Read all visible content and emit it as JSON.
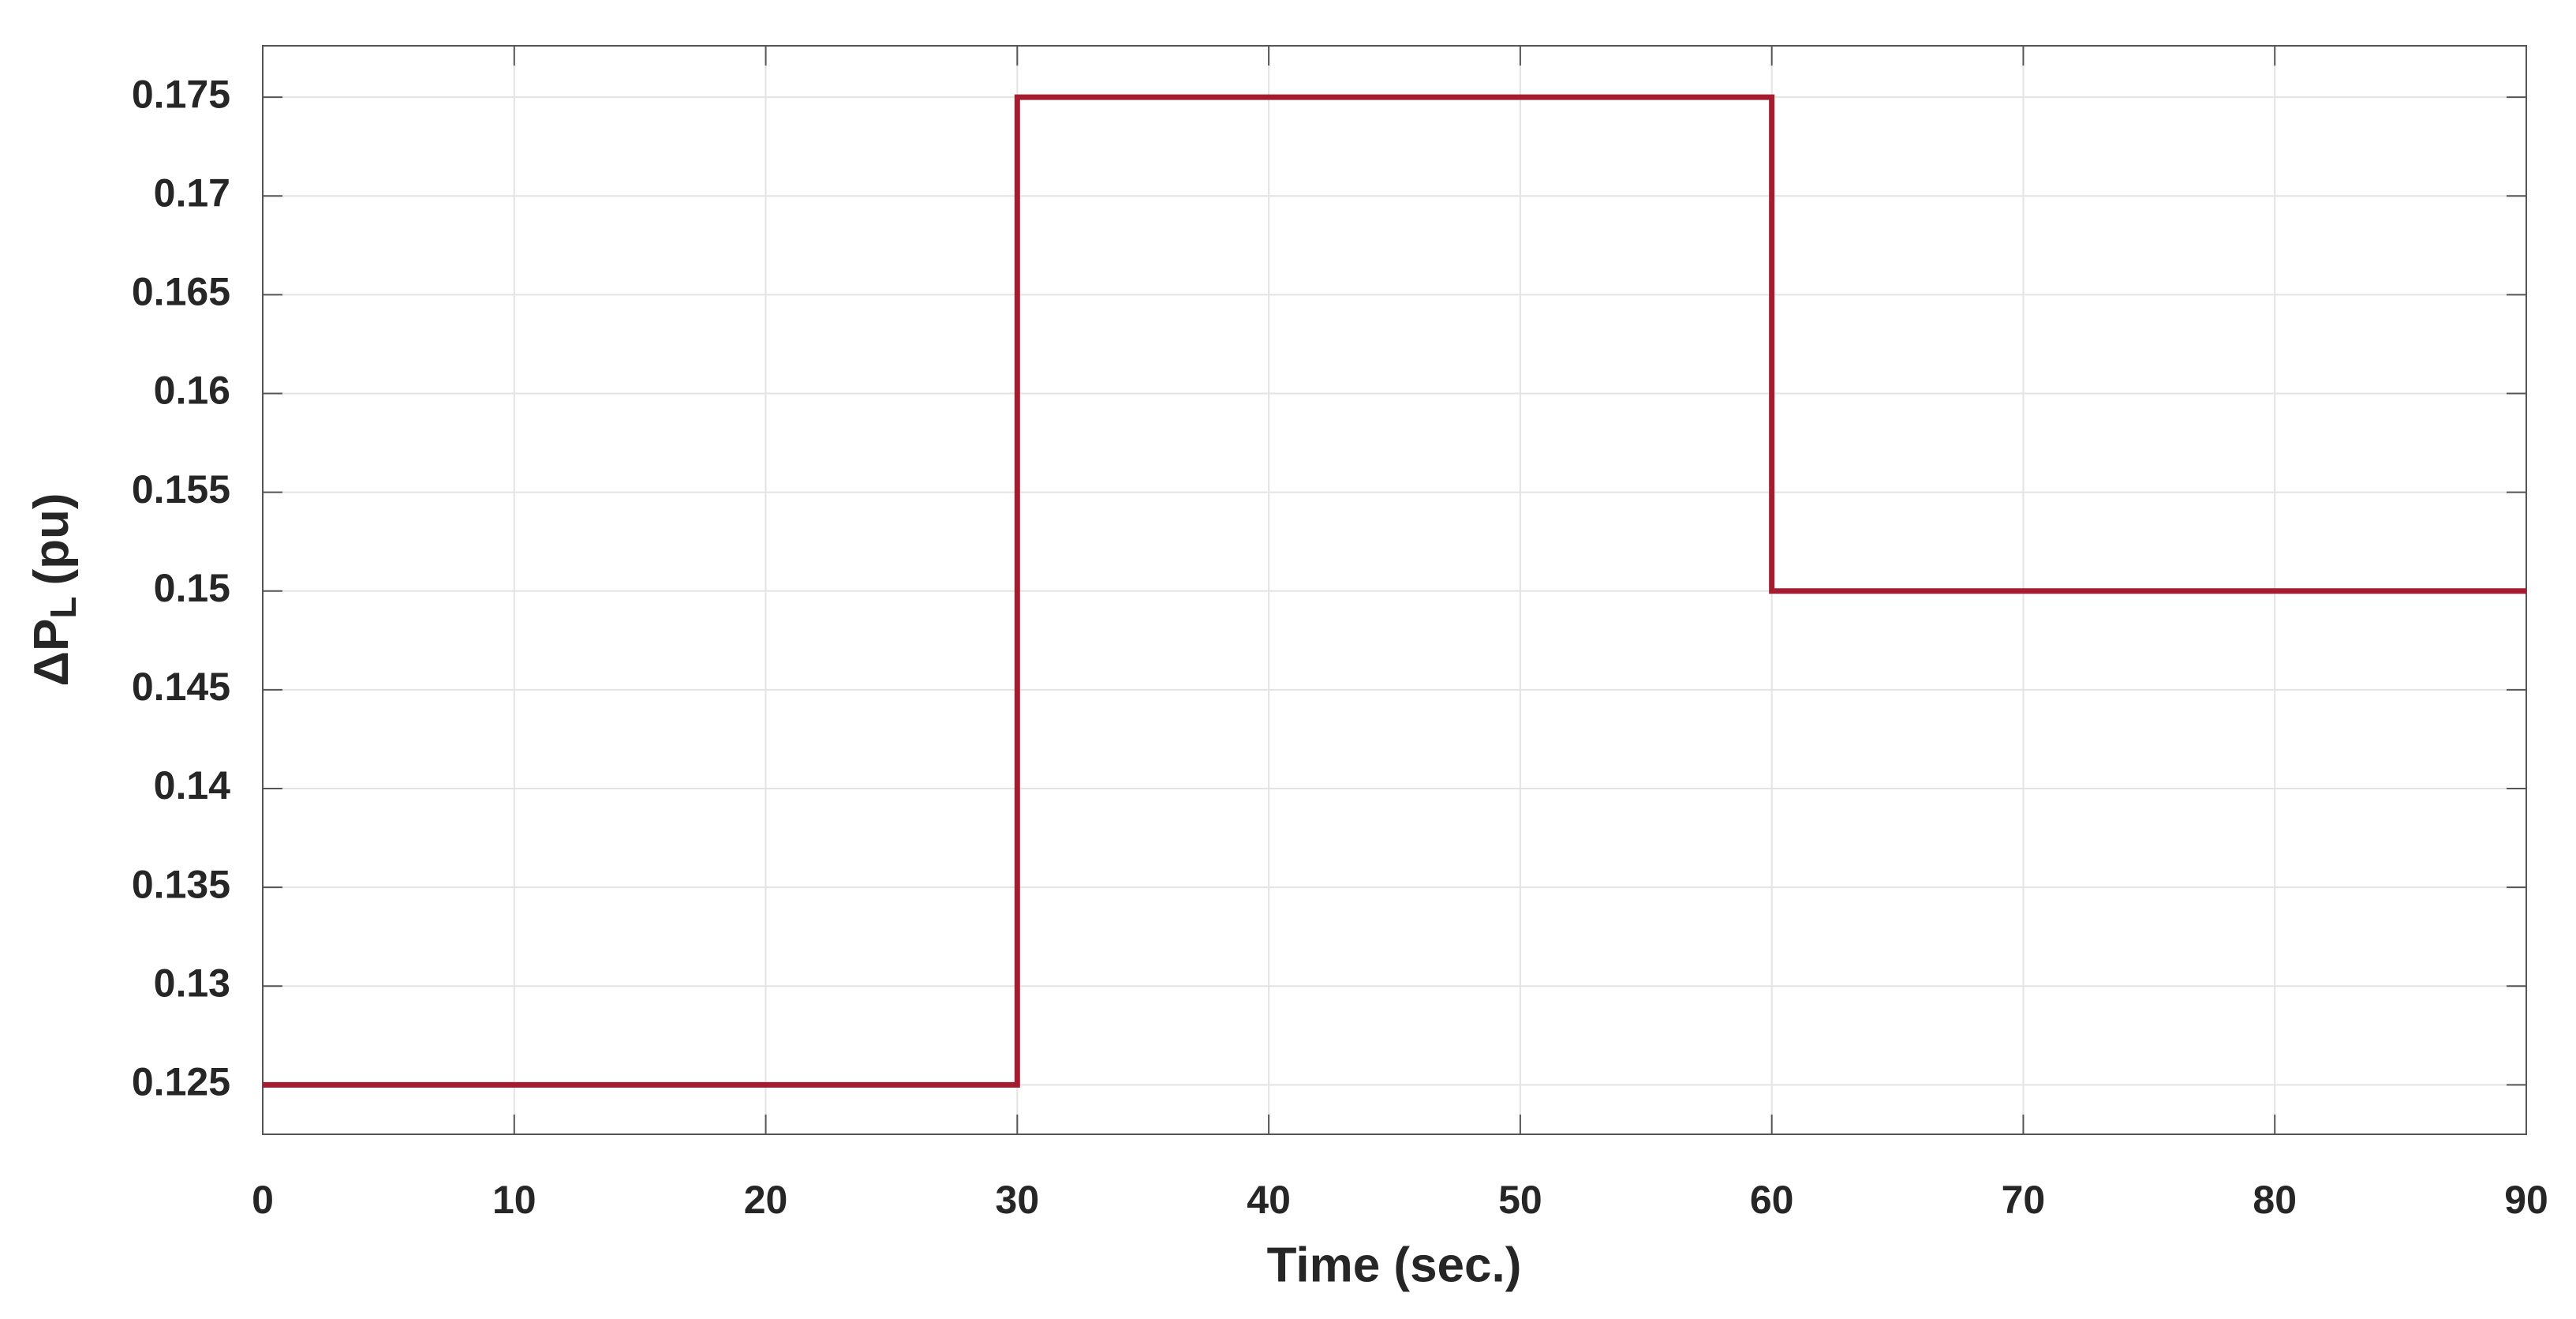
{
  "chart_data": {
    "type": "line",
    "xlabel": "Time (sec.)",
    "ylabel": {
      "main": "ΔP",
      "sub": "L",
      "unit": "(pu)"
    },
    "x": [
      0,
      30,
      30,
      60,
      60,
      90
    ],
    "series": [
      {
        "color": "#a51c30",
        "values": [
          0.125,
          0.125,
          0.175,
          0.175,
          0.15,
          0.15
        ]
      }
    ],
    "xlim": [
      0,
      90
    ],
    "xticks": [
      0,
      10,
      20,
      30,
      40,
      50,
      60,
      70,
      80,
      90
    ],
    "ylim": [
      0.1225,
      0.1776
    ],
    "yticks": [
      0.125,
      0.13,
      0.135,
      0.14,
      0.145,
      0.15,
      0.155,
      0.16,
      0.165,
      0.17,
      0.175
    ],
    "grid": true
  }
}
